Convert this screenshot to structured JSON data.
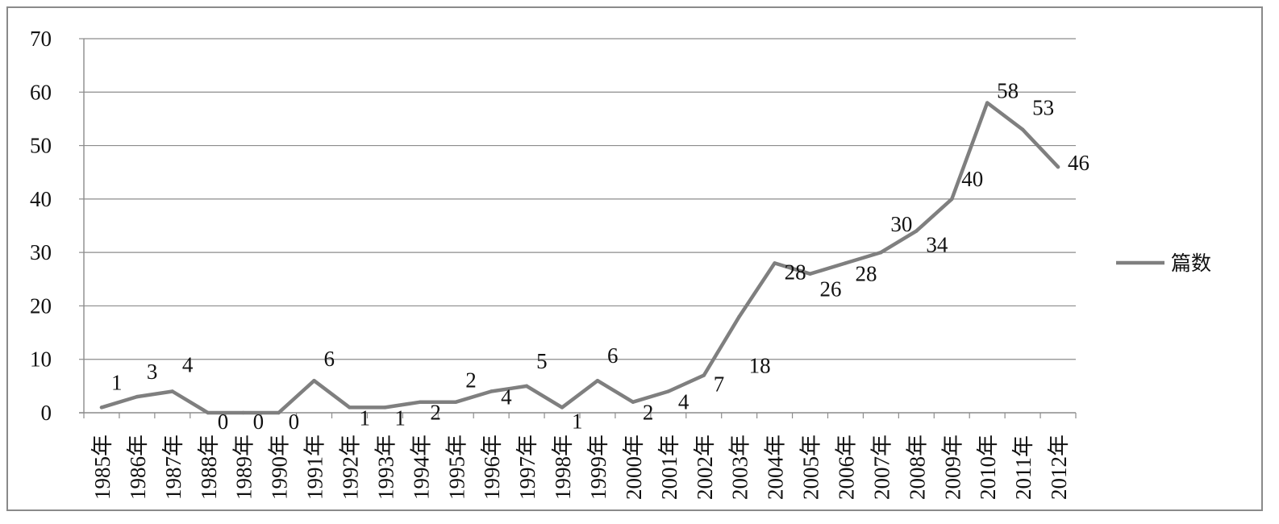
{
  "chart_data": {
    "type": "line",
    "categories": [
      "1985年",
      "1986年",
      "1987年",
      "1988年",
      "1989年",
      "1990年",
      "1991年",
      "1992年",
      "1993年",
      "1994年",
      "1995年",
      "1996年",
      "1997年",
      "1998年",
      "1999年",
      "2000年",
      "2001年",
      "2002年",
      "2003年",
      "2004年",
      "2005年",
      "2006年",
      "2007年",
      "2008年",
      "2009年",
      "2010年",
      "2011年",
      "2012年"
    ],
    "series": [
      {
        "name": "篇数",
        "values": [
          1,
          3,
          4,
          0,
          0,
          0,
          6,
          1,
          1,
          2,
          2,
          4,
          5,
          1,
          6,
          2,
          4,
          7,
          18,
          28,
          26,
          28,
          30,
          34,
          40,
          58,
          53,
          46
        ],
        "color": "#7f7f7f"
      }
    ],
    "data_labels": [
      "1",
      "3",
      "4",
      "0",
      "0",
      "0",
      "6",
      "1",
      "1",
      "2",
      "2",
      "4",
      "5",
      "1",
      "6",
      "2",
      "4",
      "7",
      "18",
      "28",
      "26",
      "28",
      "30",
      "34",
      "40",
      "58",
      "53",
      "46"
    ],
    "ylim": [
      0,
      70
    ],
    "yticks": [
      0,
      10,
      20,
      30,
      40,
      50,
      60,
      70
    ],
    "grid": true,
    "legend": "right",
    "title": "",
    "xlabel": "",
    "ylabel": ""
  }
}
